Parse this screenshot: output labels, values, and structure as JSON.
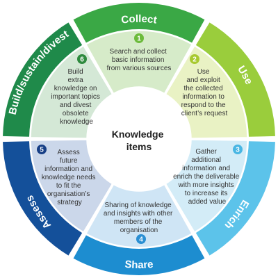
{
  "center": {
    "lines": [
      "Knowledge",
      "items"
    ]
  },
  "stages": [
    {
      "title": "Collect",
      "number": "1",
      "lines": [
        "Search and collect",
        "basic information",
        "from various sources"
      ],
      "outer_color": "#3aa845",
      "inner_color": "#d6ebc9",
      "badge_color": "#6cbb3c"
    },
    {
      "title": "Use",
      "number": "2",
      "lines": [
        "Use",
        "and exploit",
        "the collected",
        "information to",
        "respond to the",
        "client’s request"
      ],
      "outer_color": "#9acd3c",
      "inner_color": "#e9f2c4",
      "badge_color": "#a7c92f"
    },
    {
      "title": "Enrich",
      "number": "3",
      "lines": [
        "Gather",
        "additional",
        "information and",
        "enrich the deliverable",
        "with more insights",
        "to increase its",
        "added value"
      ],
      "outer_color": "#5cc3ea",
      "inner_color": "#d3ecf7",
      "badge_color": "#49b6e3"
    },
    {
      "title": "Share",
      "number": "4",
      "lines": [
        "Sharing of knowledge",
        "and insights with other",
        "members of the",
        "organisation"
      ],
      "outer_color": "#1d8dd0",
      "inner_color": "#cfe5f5",
      "badge_color": "#2a8fd3"
    },
    {
      "title": "Assess",
      "number": "5",
      "lines": [
        "Assess",
        "future",
        "information and",
        "knowledge needs",
        "to fit the",
        "organisation’s",
        "strategy"
      ],
      "outer_color": "#14509a",
      "inner_color": "#cbd7ea",
      "badge_color": "#173f86"
    },
    {
      "title": "Build/sustain/divest",
      "number": "6",
      "lines": [
        "Build",
        "extra",
        "knowledge on",
        "important topics",
        "and  divest",
        "obsolete",
        "knowledge"
      ],
      "outer_color": "#1f8a4a",
      "inner_color": "#d4e8d6",
      "badge_color": "#2e8a3e"
    }
  ]
}
